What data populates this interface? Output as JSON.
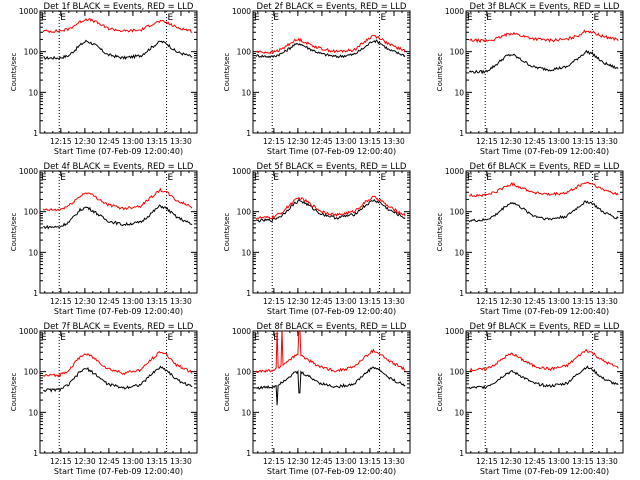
{
  "chart_data": [
    {
      "type": "line",
      "title": "Det 1f BLACK = Events, RED = LLD",
      "xlabel": "Start Time (07-Feb-09 12:00:40)",
      "ylabel": "Counts/sec",
      "x_ticks": [
        "12:15",
        "12:30",
        "12:45",
        "13:00",
        "13:15",
        "13:30"
      ],
      "y_ticks": [
        "1",
        "10",
        "100",
        "1000"
      ],
      "ylim": [
        1,
        1000
      ],
      "y_scale": "log",
      "markers": [
        "12:14",
        "13:21"
      ],
      "marker_letters": [
        "E",
        "E"
      ],
      "x": [
        "12:04",
        "12:14",
        "12:20",
        "12:27",
        "12:31",
        "12:36",
        "12:44",
        "12:54",
        "13:05",
        "13:12",
        "13:17",
        "13:21",
        "13:27",
        "13:37"
      ],
      "series": [
        {
          "name": "Events",
          "color": "#000000",
          "values": [
            70,
            70,
            80,
            145,
            185,
            150,
            85,
            70,
            80,
            130,
            180,
            160,
            100,
            75
          ]
        },
        {
          "name": "LLD",
          "color": "#ff0000",
          "values": [
            320,
            320,
            360,
            540,
            640,
            560,
            380,
            320,
            340,
            480,
            560,
            520,
            400,
            320
          ]
        }
      ]
    },
    {
      "type": "line",
      "title": "Det 2f BLACK = Events, RED = LLD",
      "xlabel": "Start Time (07-Feb-09 12:00:40)",
      "ylabel": "Counts/sec",
      "x_ticks": [
        "12:15",
        "12:30",
        "12:45",
        "13:00",
        "13:15",
        "13:30"
      ],
      "y_ticks": [
        "1",
        "10",
        "100",
        "1000"
      ],
      "ylim": [
        1,
        1000
      ],
      "y_scale": "log",
      "markers": [
        "12:14",
        "13:21"
      ],
      "marker_letters": [
        "E",
        "E"
      ],
      "x": [
        "12:04",
        "12:14",
        "12:20",
        "12:27",
        "12:31",
        "12:36",
        "12:44",
        "12:54",
        "13:05",
        "13:12",
        "13:17",
        "13:21",
        "13:27",
        "13:37"
      ],
      "series": [
        {
          "name": "Events",
          "color": "#000000",
          "values": [
            80,
            75,
            90,
            140,
            160,
            125,
            90,
            75,
            85,
            130,
            190,
            170,
            110,
            80
          ]
        },
        {
          "name": "LLD",
          "color": "#ff0000",
          "values": [
            100,
            95,
            115,
            180,
            200,
            160,
            120,
            100,
            110,
            180,
            250,
            220,
            150,
            105
          ]
        }
      ]
    },
    {
      "type": "line",
      "title": "Det 3f BLACK = Events, RED = LLD",
      "xlabel": "Start Time (07-Feb-09 12:00:40)",
      "ylabel": "Counts/sec",
      "x_ticks": [
        "12:15",
        "12:30",
        "12:45",
        "13:00",
        "13:15",
        "13:30"
      ],
      "y_ticks": [
        "1",
        "10",
        "100",
        "1000"
      ],
      "ylim": [
        1,
        1000
      ],
      "y_scale": "log",
      "markers": [
        "12:14",
        "13:21"
      ],
      "marker_letters": [
        "E",
        "E"
      ],
      "x": [
        "12:04",
        "12:14",
        "12:20",
        "12:27",
        "12:31",
        "12:36",
        "12:44",
        "12:54",
        "13:05",
        "13:12",
        "13:17",
        "13:21",
        "13:27",
        "13:37"
      ],
      "series": [
        {
          "name": "Events",
          "color": "#000000",
          "values": [
            32,
            32,
            45,
            78,
            85,
            65,
            42,
            36,
            42,
            70,
            100,
            90,
            55,
            38
          ]
        },
        {
          "name": "LLD",
          "color": "#ff0000",
          "values": [
            190,
            185,
            200,
            260,
            290,
            250,
            210,
            190,
            200,
            250,
            330,
            300,
            240,
            200
          ]
        }
      ]
    },
    {
      "type": "line",
      "title": "Det 4f BLACK = Events, RED = LLD",
      "xlabel": "Start Time (07-Feb-09 12:00:40)",
      "ylabel": "Counts/sec",
      "x_ticks": [
        "12:15",
        "12:30",
        "12:45",
        "13:00",
        "13:15",
        "13:30"
      ],
      "y_ticks": [
        "1",
        "10",
        "100",
        "1000"
      ],
      "ylim": [
        1,
        1000
      ],
      "y_scale": "log",
      "markers": [
        "12:14",
        "13:21"
      ],
      "marker_letters": [
        "E",
        "E"
      ],
      "x": [
        "12:04",
        "12:14",
        "12:20",
        "12:27",
        "12:31",
        "12:36",
        "12:44",
        "12:54",
        "13:05",
        "13:12",
        "13:17",
        "13:21",
        "13:27",
        "13:37"
      ],
      "series": [
        {
          "name": "Events",
          "color": "#000000",
          "values": [
            42,
            42,
            55,
            110,
            130,
            100,
            60,
            48,
            55,
            95,
            140,
            120,
            75,
            48
          ]
        },
        {
          "name": "LLD",
          "color": "#ff0000",
          "values": [
            110,
            110,
            140,
            240,
            300,
            240,
            150,
            120,
            140,
            240,
            340,
            300,
            190,
            130
          ]
        }
      ]
    },
    {
      "type": "line",
      "title": "Det 5f BLACK = Events, RED = LLD",
      "xlabel": "Start Time (07-Feb-09 12:00:40)",
      "ylabel": "Counts/sec",
      "x_ticks": [
        "12:15",
        "12:30",
        "12:45",
        "13:00",
        "13:15",
        "13:30"
      ],
      "y_ticks": [
        "1",
        "10",
        "100",
        "1000"
      ],
      "ylim": [
        1,
        1000
      ],
      "y_scale": "log",
      "markers": [
        "12:14",
        "13:21"
      ],
      "marker_letters": [
        "E",
        "E"
      ],
      "x": [
        "12:04",
        "12:14",
        "12:20",
        "12:27",
        "12:31",
        "12:36",
        "12:44",
        "12:54",
        "13:05",
        "13:12",
        "13:17",
        "13:21",
        "13:27",
        "13:37"
      ],
      "series": [
        {
          "name": "Events",
          "color": "#000000",
          "values": [
            60,
            62,
            80,
            150,
            190,
            150,
            90,
            70,
            85,
            140,
            190,
            170,
            110,
            70
          ]
        },
        {
          "name": "LLD",
          "color": "#ff0000",
          "values": [
            70,
            72,
            95,
            175,
            220,
            175,
            105,
            82,
            100,
            170,
            230,
            200,
            130,
            82
          ]
        }
      ]
    },
    {
      "type": "line",
      "title": "Det 6f BLACK = Events, RED = LLD",
      "xlabel": "Start Time (07-Feb-09 12:00:40)",
      "ylabel": "Counts/sec",
      "x_ticks": [
        "12:15",
        "12:30",
        "12:45",
        "13:00",
        "13:15",
        "13:30"
      ],
      "y_ticks": [
        "1",
        "10",
        "100",
        "1000"
      ],
      "ylim": [
        1,
        1000
      ],
      "y_scale": "log",
      "markers": [
        "12:14",
        "13:21"
      ],
      "marker_letters": [
        "E",
        "E"
      ],
      "x": [
        "12:04",
        "12:14",
        "12:20",
        "12:27",
        "12:31",
        "12:36",
        "12:44",
        "12:54",
        "13:05",
        "13:12",
        "13:17",
        "13:21",
        "13:27",
        "13:37"
      ],
      "series": [
        {
          "name": "Events",
          "color": "#000000",
          "values": [
            60,
            62,
            80,
            140,
            170,
            130,
            80,
            65,
            78,
            130,
            180,
            160,
            100,
            68
          ]
        },
        {
          "name": "LLD",
          "color": "#ff0000",
          "values": [
            250,
            255,
            300,
            420,
            480,
            400,
            300,
            260,
            290,
            420,
            520,
            480,
            350,
            270
          ]
        }
      ]
    },
    {
      "type": "line",
      "title": "Det 7f BLACK = Events, RED = LLD",
      "xlabel": "Start Time (07-Feb-09 12:00:40)",
      "ylabel": "Counts/sec",
      "x_ticks": [
        "12:15",
        "12:30",
        "12:45",
        "13:00",
        "13:15",
        "13:30"
      ],
      "y_ticks": [
        "1",
        "10",
        "100",
        "1000"
      ],
      "ylim": [
        1,
        1000
      ],
      "y_scale": "log",
      "markers": [
        "12:14",
        "13:21"
      ],
      "marker_letters": [
        "E",
        "E"
      ],
      "x": [
        "12:04",
        "12:14",
        "12:20",
        "12:27",
        "12:31",
        "12:36",
        "12:44",
        "12:54",
        "13:05",
        "13:12",
        "13:17",
        "13:21",
        "13:27",
        "13:37"
      ],
      "series": [
        {
          "name": "Events",
          "color": "#000000",
          "values": [
            35,
            36,
            48,
            100,
            120,
            90,
            50,
            40,
            48,
            90,
            130,
            110,
            65,
            42
          ]
        },
        {
          "name": "LLD",
          "color": "#ff0000",
          "values": [
            80,
            82,
            110,
            230,
            280,
            210,
            120,
            92,
            110,
            210,
            310,
            260,
            150,
            95
          ]
        }
      ]
    },
    {
      "type": "line",
      "title": "Det 8f BLACK = Events, RED = LLD",
      "xlabel": "Start Time (07-Feb-09 12:00:40)",
      "ylabel": "Counts/sec",
      "x_ticks": [
        "12:15",
        "12:30",
        "12:45",
        "13:00",
        "13:15",
        "13:30"
      ],
      "y_ticks": [
        "1",
        "10",
        "100",
        "1000"
      ],
      "ylim": [
        1,
        1000
      ],
      "y_scale": "log",
      "markers": [
        "12:14",
        "13:21"
      ],
      "marker_letters": [
        "E",
        "E"
      ],
      "x": [
        "12:04",
        "12:14",
        "12:20",
        "12:27",
        "12:31",
        "12:36",
        "12:44",
        "12:54",
        "13:05",
        "13:12",
        "13:17",
        "13:21",
        "13:27",
        "13:37"
      ],
      "series": [
        {
          "name": "Events",
          "color": "#000000",
          "values": [
            40,
            42,
            55,
            90,
            100,
            80,
            52,
            42,
            50,
            90,
            130,
            110,
            70,
            45
          ]
        },
        {
          "name": "LLD",
          "color": "#ff0000",
          "values": [
            100,
            105,
            140,
            230,
            260,
            200,
            130,
            105,
            130,
            230,
            330,
            280,
            180,
            115
          ]
        }
      ],
      "spikes": [
        {
          "x": "12:17",
          "lld": 1100,
          "events_dip": 15
        },
        {
          "x": "12:20",
          "lld": 1100
        },
        {
          "x": "12:31",
          "lld": 1100,
          "events_dip": 30
        }
      ]
    },
    {
      "type": "line",
      "title": "Det 9f BLACK = Events, RED = LLD",
      "xlabel": "Start Time (07-Feb-09 12:00:40)",
      "ylabel": "Counts/sec",
      "x_ticks": [
        "12:15",
        "12:30",
        "12:45",
        "13:00",
        "13:15",
        "13:30"
      ],
      "y_ticks": [
        "1",
        "10",
        "100",
        "1000"
      ],
      "ylim": [
        1,
        1000
      ],
      "y_scale": "log",
      "markers": [
        "12:14",
        "13:21"
      ],
      "marker_letters": [
        "E",
        "E"
      ],
      "x": [
        "12:04",
        "12:14",
        "12:20",
        "12:27",
        "12:31",
        "12:36",
        "12:44",
        "12:54",
        "13:05",
        "13:12",
        "13:17",
        "13:21",
        "13:27",
        "13:37"
      ],
      "series": [
        {
          "name": "Events",
          "color": "#000000",
          "values": [
            40,
            42,
            55,
            90,
            100,
            80,
            52,
            44,
            52,
            90,
            130,
            112,
            70,
            46
          ]
        },
        {
          "name": "LLD",
          "color": "#ff0000",
          "values": [
            110,
            115,
            150,
            240,
            280,
            210,
            140,
            115,
            140,
            240,
            340,
            290,
            190,
            125
          ]
        }
      ]
    }
  ]
}
